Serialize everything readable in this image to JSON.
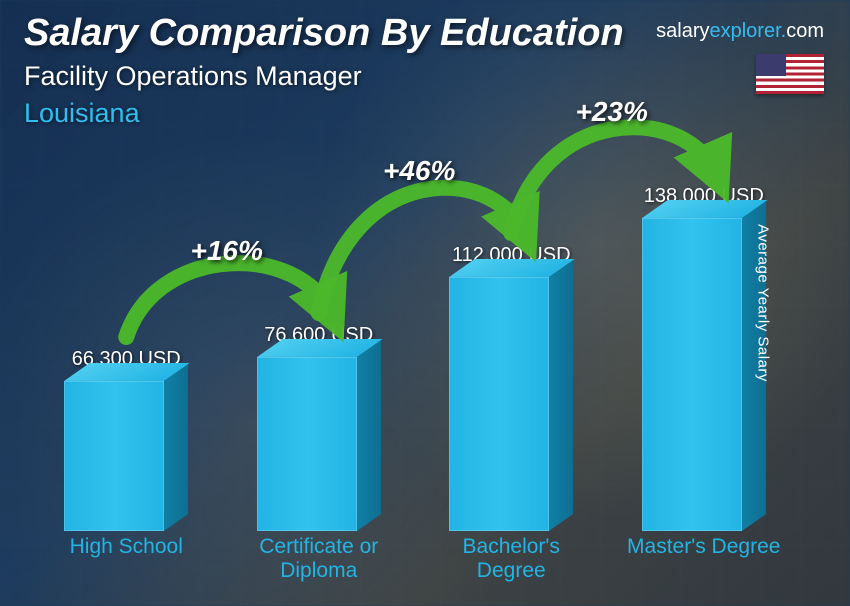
{
  "header": {
    "title": "Salary Comparison By Education",
    "subtitle": "Facility Operations Manager",
    "location": "Louisiana",
    "location_color": "#33bdee"
  },
  "brand": {
    "text_pre": "salary",
    "text_mid": "explorer",
    "text_dot": ".",
    "text_suf": "com"
  },
  "flag": {
    "country": "United States"
  },
  "y_axis_label": "Average Yearly Salary",
  "chart": {
    "type": "bar",
    "bar_color": "#22b4e4",
    "bar_side_color": "#117fa5",
    "bar_top_color": "#4ecdf0",
    "category_label_color": "#22b4e4",
    "value_label_color": "#ffffff",
    "value_fontsize": 20,
    "category_fontsize": 21,
    "max_value": 150000,
    "bars": [
      {
        "category": "High School",
        "value": 66300,
        "value_label": "66,300 USD"
      },
      {
        "category": "Certificate or Diploma",
        "value": 76600,
        "value_label": "76,600 USD"
      },
      {
        "category": "Bachelor's Degree",
        "value": 112000,
        "value_label": "112,000 USD"
      },
      {
        "category": "Master's Degree",
        "value": 138000,
        "value_label": "138,000 USD"
      }
    ]
  },
  "arrows": {
    "color": "#4bb92b",
    "stroke_width": 16,
    "pct_fontsize": 28,
    "pct_color": "#ffffff",
    "items": [
      {
        "label": "+16%",
        "from": 0,
        "to": 1
      },
      {
        "label": "+46%",
        "from": 1,
        "to": 2
      },
      {
        "label": "+23%",
        "from": 2,
        "to": 3
      }
    ]
  }
}
